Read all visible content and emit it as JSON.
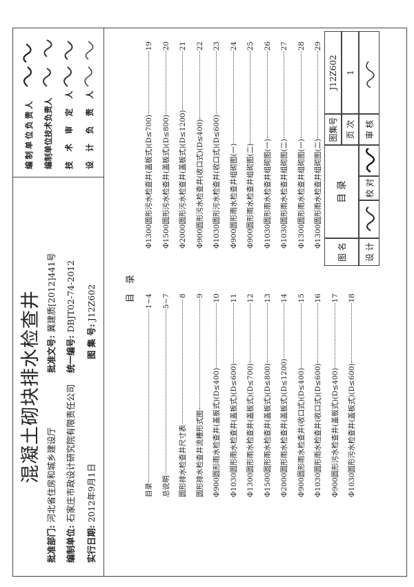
{
  "title": "混凝土砌块排水检查井",
  "meta": {
    "approval_dept_label": "批准部门:",
    "approval_dept": "河北省住房和城乡建设厅",
    "approval_doc_label": "批准文号:",
    "approval_doc": "冀建质[2012]441号",
    "compile_unit_label": "编制单位:",
    "compile_unit": "石家庄市政设计研究院有限责任公司",
    "unified_no_label": "统一编号:",
    "unified_no": "DBJT02-74-2012",
    "atlas_no_label": "图 集 号:",
    "atlas_no": "J12Z602",
    "effective_date_label": "实行日期:",
    "effective_date": "2012年9月1日"
  },
  "responsible": [
    {
      "role": "编制单位负责人"
    },
    {
      "role": "编制单位技术负责人"
    },
    {
      "role": "技 术 审 定 人"
    },
    {
      "role": "设 计 负 责 人"
    }
  ],
  "toc_heading": "目录",
  "toc_left": [
    {
      "label": "目录",
      "page": "1~4"
    },
    {
      "label": "总说明",
      "page": "5~7"
    },
    {
      "label": "圆形排水检查井尺寸表",
      "page": "8"
    },
    {
      "label": "圆形排水检查井流槽形式图",
      "page": "9"
    },
    {
      "label": "Φ900圆形雨水检查井(盖板式)(D≤400)",
      "page": "10"
    },
    {
      "label": "Φ1030圆形雨水检查井(盖板式)(D≤600)",
      "page": "11"
    },
    {
      "label": "Φ1300圆形雨水检查井(盖板式)(D≤700)",
      "page": "12"
    },
    {
      "label": "Φ1500圆形雨水检查井(盖板式)(D≤800)",
      "page": "13"
    },
    {
      "label": "Φ2000圆形雨水检查井(盖板式)(D≤1200)",
      "page": "14"
    },
    {
      "label": "Φ900圆形雨水检查井(收口式)(D≤400)",
      "page": "15"
    },
    {
      "label": "Φ1030圆形雨水检查井(收口式)(D≤600)",
      "page": "16"
    },
    {
      "label": "Φ900圆形污水检查井(盖板式)(D≤400)",
      "page": "17"
    },
    {
      "label": "Φ1030圆形污水检查井(盖板式)(D≤600)",
      "page": "18"
    }
  ],
  "toc_right": [
    {
      "label": "Φ1300圆形污水检查井(盖板式)(D≤700)",
      "page": "19"
    },
    {
      "label": "Φ1500圆形污水检查井(盖板式)(D≤800)",
      "page": "20"
    },
    {
      "label": "Φ2000圆形污水检查井(盖板式)(D≤1200)",
      "page": "21"
    },
    {
      "label": "Φ900圆形污水检查井(收口式)(D≤400)",
      "page": "22"
    },
    {
      "label": "Φ1030圆形污水检查井(收口式)(D≤600)",
      "page": "23"
    },
    {
      "label": "Φ900圆形雨水检查井组砌图(一)",
      "page": "24"
    },
    {
      "label": "Φ900圆形雨水检查井组砌图(二)",
      "page": "25"
    },
    {
      "label": "Φ1030圆形雨水检查井组砌图(一)",
      "page": "26"
    },
    {
      "label": "Φ1030圆形雨水检查井组砌图(二)",
      "page": "27"
    },
    {
      "label": "Φ1300圆形雨水检查井组砌图(一)",
      "page": "28"
    },
    {
      "label": "Φ1300圆形雨水检查井组砌图(二)",
      "page": "29"
    }
  ],
  "title_block": {
    "drawing_name_label": "图 名",
    "drawing_name": "目 录",
    "atlas_no_label": "图集号",
    "atlas_no": "J12Z602",
    "page_label": "页 次",
    "page": "1",
    "design_label": "设 计",
    "check_label": "校 对",
    "review_label": "审 核"
  }
}
